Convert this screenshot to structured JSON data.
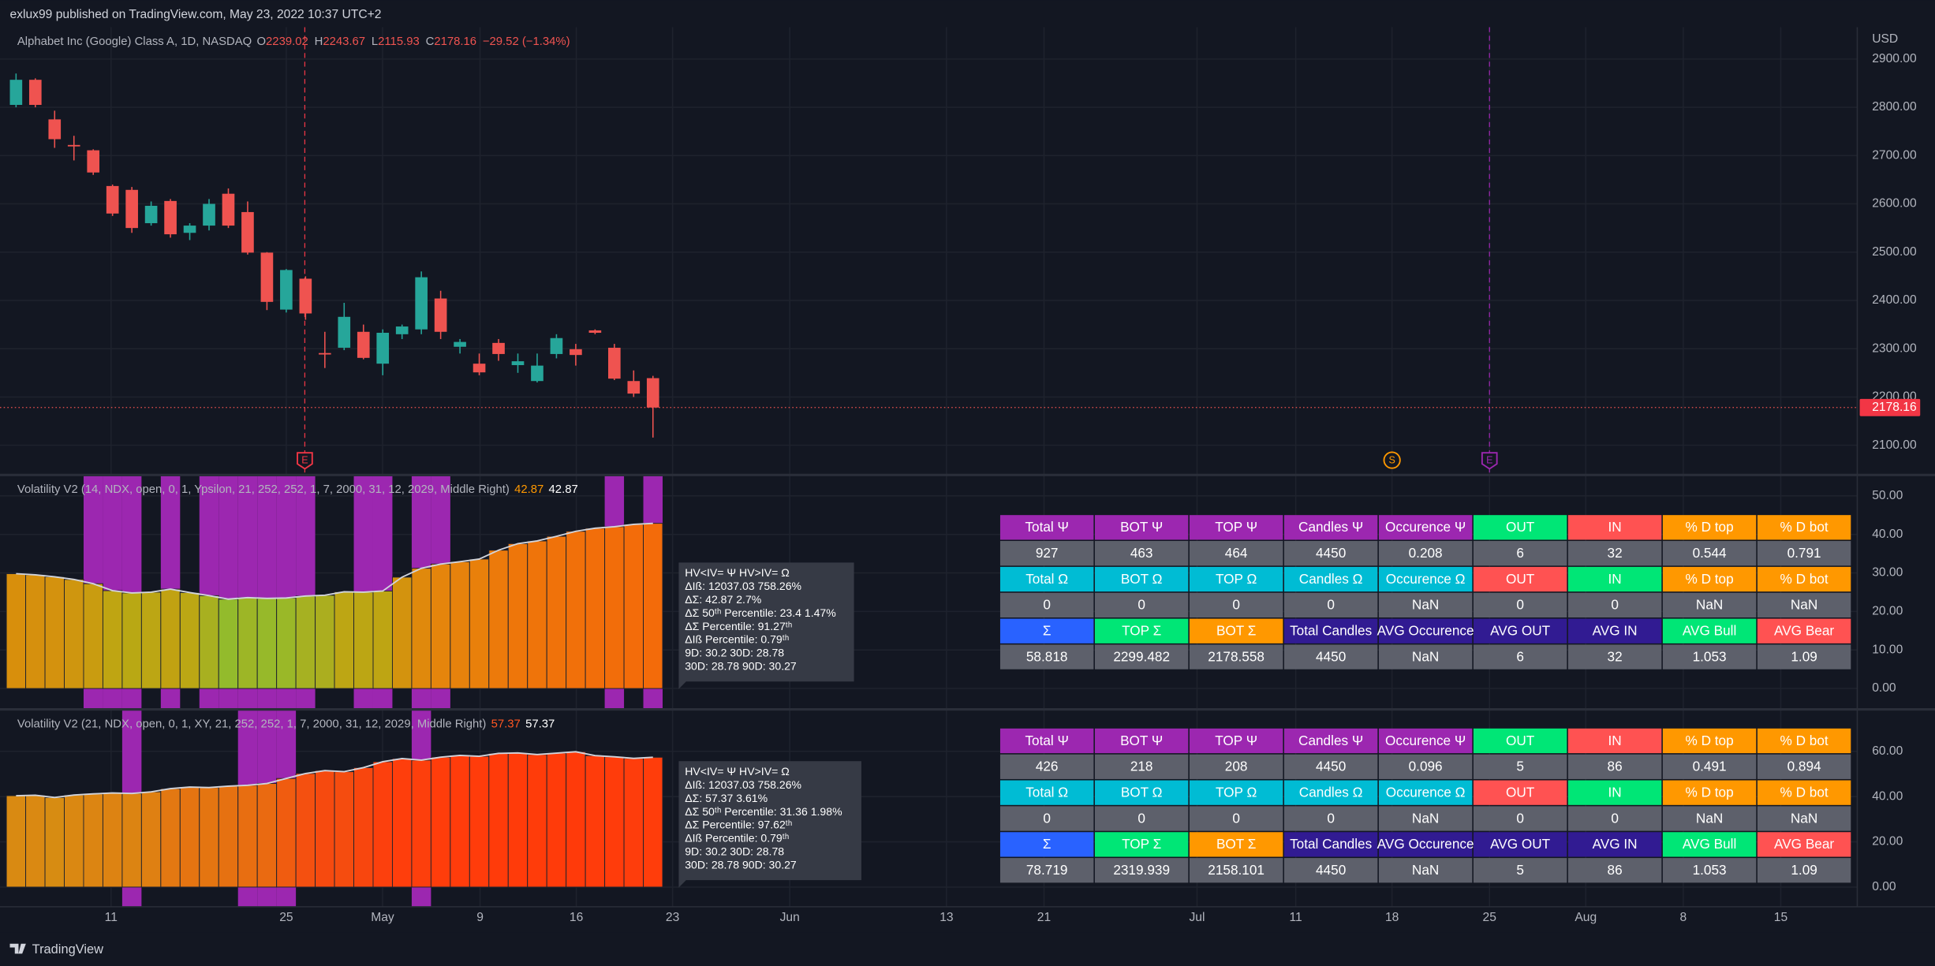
{
  "header": {
    "published": "exlux99 published on TradingView.com, May 23, 2022 10:37 UTC+2",
    "brand": "TradingView"
  },
  "chart_data": [
    {
      "type": "candlestick",
      "title": "Alphabet Inc (Google) Class A, 1D, NASDAQ",
      "legend_letters": [
        "O",
        "H",
        "L",
        "C"
      ],
      "change": "−29.52 (−1.34%)",
      "currency": "USD",
      "open": [
        2805,
        2857,
        2775,
        2722,
        2711,
        2637,
        2629,
        2560,
        2606,
        2540,
        2555,
        2621,
        2583,
        2499,
        2381,
        2445,
        2291,
        2302,
        2335,
        2269,
        2330,
        2340,
        2404,
        2304,
        2269,
        2312,
        2266,
        2233,
        2289,
        2299,
        2338,
        2302,
        2233,
        2239.02
      ],
      "high": [
        2870,
        2860,
        2793,
        2741,
        2713,
        2640,
        2635,
        2605,
        2610,
        2560,
        2610,
        2632,
        2605,
        2500,
        2465,
        2450,
        2335,
        2395,
        2350,
        2340,
        2350,
        2460,
        2420,
        2320,
        2290,
        2320,
        2290,
        2290,
        2330,
        2310,
        2340,
        2310,
        2255,
        2243.67
      ],
      "low": [
        2800,
        2800,
        2716,
        2690,
        2660,
        2575,
        2540,
        2555,
        2530,
        2525,
        2545,
        2550,
        2495,
        2380,
        2375,
        2360,
        2260,
        2297,
        2278,
        2245,
        2320,
        2330,
        2320,
        2290,
        2245,
        2275,
        2250,
        2230,
        2280,
        2265,
        2330,
        2235,
        2200,
        2115.93
      ],
      "close": [
        2857,
        2805,
        2734,
        2719,
        2665,
        2580,
        2550,
        2596,
        2537,
        2555,
        2600,
        2555,
        2499,
        2397,
        2463,
        2373,
        2288,
        2366,
        2281,
        2333,
        2346,
        2448,
        2335,
        2314,
        2251,
        2289,
        2274,
        2265,
        2322,
        2287,
        2333,
        2238,
        2207,
        2178.16
      ],
      "up_color": "#26a69a",
      "down_color": "#ef5350",
      "ylim": [
        2041,
        2966
      ],
      "yticks": [
        {
          "value": 2100,
          "label": "2100.00"
        },
        {
          "value": 2200,
          "label": "2200.00"
        },
        {
          "value": 2300,
          "label": "2300.00"
        },
        {
          "value": 2400,
          "label": "2400.00"
        },
        {
          "value": 2500,
          "label": "2500.00"
        },
        {
          "value": 2600,
          "label": "2600.00"
        },
        {
          "value": 2700,
          "label": "2700.00"
        },
        {
          "value": 2800,
          "label": "2800.00"
        },
        {
          "value": 2900,
          "label": "2900.00"
        }
      ],
      "grid": true,
      "x_labels": [
        "11",
        "25",
        "May",
        "9",
        "16",
        "23",
        "Jun",
        "13",
        "21",
        "Jul",
        "11",
        "18",
        "25",
        "Aug",
        "8",
        "15"
      ],
      "events": [
        {
          "label": "E",
          "color": "#f23645"
        },
        {
          "label": "S",
          "color": "#ff9800"
        },
        {
          "label": "E",
          "color": "#9c27b0"
        }
      ]
    },
    {
      "type": "bar",
      "title": "Volatility V2 (14, NDX, open, 0, 1, Ypsilon, 21, 252, 252, 1, 7, 2000, 31, 12, 2029, Middle Right)",
      "values": [
        29.8,
        29.5,
        29.0,
        28.3,
        27.2,
        25.4,
        24.8,
        25.0,
        25.8,
        24.9,
        24.1,
        23.2,
        23.6,
        23.4,
        23.5,
        24.0,
        24.2,
        25.1,
        25.0,
        25.3,
        28.9,
        31.2,
        32.3,
        32.9,
        33.6,
        35.9,
        37.6,
        38.3,
        39.5,
        40.8,
        41.6,
        42.0,
        42.6,
        42.87
      ],
      "colors": [
        "#d88f0c",
        "#d6900d",
        "#d4920e",
        "#cf960f",
        "#c99c10",
        "#bfa512",
        "#b9a814",
        "#bca614",
        "#c1a212",
        "#bba714",
        "#a8b020",
        "#93bb2c",
        "#9db626",
        "#97b92a",
        "#9ab828",
        "#a6b122",
        "#abae1f",
        "#bda614",
        "#bca614",
        "#bea513",
        "#d3930e",
        "#e0890c",
        "#e5850c",
        "#e7820c",
        "#e9800b",
        "#ec7a0b",
        "#ee760a",
        "#ef740a",
        "#f0720a",
        "#f1700a",
        "#f26e0a",
        "#f26d0a",
        "#f36c0a",
        "#f36b0a"
      ],
      "highlight": [
        false,
        false,
        false,
        false,
        true,
        true,
        true,
        false,
        true,
        false,
        true,
        true,
        true,
        true,
        true,
        true,
        false,
        false,
        true,
        true,
        false,
        true,
        true,
        false,
        false,
        false,
        false,
        false,
        false,
        false,
        false,
        true,
        false,
        true
      ],
      "highlight_color": "#9c27b0",
      "value_color": "#ff9800",
      "ylim": [
        -5.1,
        55.1
      ],
      "yticks": [
        {
          "value": 0,
          "label": "0.00"
        },
        {
          "value": 10,
          "label": "10.00"
        },
        {
          "value": 20,
          "label": "20.00"
        },
        {
          "value": 30,
          "label": "30.00"
        },
        {
          "value": 40,
          "label": "40.00"
        },
        {
          "value": 50,
          "label": "50.00"
        }
      ],
      "notes": [
        "HV<IV= Ψ  HV>IV= Ω",
        "ΔIß: 12037.03  758.26%",
        "ΔΣ: 42.87  2.7%",
        "ΔΣ 50ᵗʰ Percentile: 23.4  1.47%",
        "ΔΣ Percentile: 91.27ᵗʰ",
        "ΔIß Percentile: 0.79ᵗʰ",
        "9D: 30.2  30D: 28.78",
        "30D: 28.78  90D: 30.27"
      ]
    },
    {
      "type": "bar",
      "title": "Volatility V2 (21, NDX, open, 0, 1, XY, 21, 252, 252, 1, 7, 2000, 31, 12, 2029, Middle Right)",
      "values": [
        40.4,
        40.6,
        39.6,
        40.7,
        41.2,
        41.6,
        41.4,
        42.1,
        43.5,
        44.2,
        44.0,
        44.6,
        45.0,
        45.8,
        48.0,
        50.2,
        51.5,
        51.0,
        52.8,
        55.4,
        56.8,
        56.1,
        57.4,
        58.2,
        57.8,
        59.1,
        59.3,
        58.6,
        59.2,
        59.8,
        58.1,
        57.6,
        56.9,
        57.37
      ],
      "colors": [
        "#d98a12",
        "#da8912",
        "#d78c12",
        "#da8812",
        "#dc8512",
        "#dd8312",
        "#dc8412",
        "#df8012",
        "#e37812",
        "#e57411",
        "#e47511",
        "#e67111",
        "#e86e11",
        "#ea6a11",
        "#f05c10",
        "#f45010",
        "#f64a0f",
        "#f54c0f",
        "#f8460e",
        "#fc400d",
        "#fe3e0c",
        "#fd3f0c",
        "#ff3d0b",
        "#ff3c0b",
        "#ff3c0b",
        "#ff3b0a",
        "#ff3b0a",
        "#ff3c0a",
        "#ff3b0a",
        "#ff3a0a",
        "#ff3c0b",
        "#ff3c0b",
        "#fe3d0c",
        "#ff3d0b"
      ],
      "highlight": [
        false,
        false,
        false,
        false,
        false,
        false,
        true,
        false,
        false,
        false,
        false,
        false,
        true,
        true,
        true,
        false,
        false,
        false,
        false,
        false,
        false,
        true,
        false,
        false,
        false,
        false,
        false,
        false,
        false,
        false,
        false,
        false,
        false,
        false
      ],
      "highlight_color": "#9c27b0",
      "value_color": "#ff5722",
      "ylim": [
        -8.7,
        78
      ],
      "yticks": [
        {
          "value": 0,
          "label": "0.00"
        },
        {
          "value": 20,
          "label": "20.00"
        },
        {
          "value": 40,
          "label": "40.00"
        },
        {
          "value": 60,
          "label": "60.00"
        }
      ],
      "notes": [
        "HV<IV= Ψ  HV>IV= Ω",
        "ΔIß: 12037.03  758.26%",
        "ΔΣ: 57.37  3.61%",
        "ΔΣ 50ᵗʰ Percentile: 31.36  1.98%",
        "ΔΣ Percentile: 97.62ᵗʰ",
        "ΔIß Percentile: 0.79ᵗʰ",
        "9D: 30.2  30D: 28.78",
        "30D: 28.78  90D: 30.27"
      ]
    }
  ],
  "tables": [
    {
      "rows": [
        [
          "Total Ψ",
          "BOT Ψ",
          "TOP Ψ",
          "Candles Ψ",
          "Occurence Ψ",
          "OUT",
          "IN",
          "% D top",
          "% D bot"
        ],
        [
          "927",
          "463",
          "464",
          "4450",
          "0.208",
          "6",
          "32",
          "0.544",
          "0.791"
        ],
        [
          "Total Ω",
          "BOT Ω",
          "TOP Ω",
          "Candles Ω",
          "Occurence Ω",
          "OUT",
          "IN",
          "% D top",
          "% D bot"
        ],
        [
          "0",
          "0",
          "0",
          "0",
          "NaN",
          "0",
          "0",
          "NaN",
          "NaN"
        ],
        [
          "Σ",
          "TOP Σ",
          "BOT Σ",
          "Total Candles",
          "AVG Occurence",
          "AVG OUT",
          "AVG IN",
          "AVG Bull",
          "AVG Bear"
        ],
        [
          "58.818",
          "2299.482",
          "2178.558",
          "4450",
          "NaN",
          "6",
          "32",
          "1.053",
          "1.09"
        ]
      ],
      "header_colors": [
        [
          "#9c27b0",
          "#9c27b0",
          "#9c27b0",
          "#9c27b0",
          "#9c27b0",
          "#00e676",
          "#ff5252",
          "#ff9800",
          "#ff9800"
        ],
        [
          "#00bcd4",
          "#00bcd4",
          "#00bcd4",
          "#00bcd4",
          "#00bcd4",
          "#ff5252",
          "#00e676",
          "#ff9800",
          "#ff9800"
        ],
        [
          "#2962ff",
          "#00e676",
          "#ff9800",
          "#311b92",
          "#311b92",
          "#311b92",
          "#311b92",
          "#00e676",
          "#ff5252"
        ]
      ],
      "value_color": "#5d606b"
    },
    {
      "rows": [
        [
          "Total Ψ",
          "BOT Ψ",
          "TOP Ψ",
          "Candles Ψ",
          "Occurence Ψ",
          "OUT",
          "IN",
          "% D top",
          "% D bot"
        ],
        [
          "426",
          "218",
          "208",
          "4450",
          "0.096",
          "5",
          "86",
          "0.491",
          "0.894"
        ],
        [
          "Total Ω",
          "BOT Ω",
          "TOP Ω",
          "Candles Ω",
          "Occurence Ω",
          "OUT",
          "IN",
          "% D top",
          "% D bot"
        ],
        [
          "0",
          "0",
          "0",
          "0",
          "NaN",
          "0",
          "0",
          "NaN",
          "NaN"
        ],
        [
          "Σ",
          "TOP Σ",
          "BOT Σ",
          "Total Candles",
          "AVG Occurence",
          "AVG OUT",
          "AVG IN",
          "AVG Bull",
          "AVG Bear"
        ],
        [
          "78.719",
          "2319.939",
          "2158.101",
          "4450",
          "NaN",
          "5",
          "86",
          "1.053",
          "1.09"
        ]
      ],
      "header_colors": [
        [
          "#9c27b0",
          "#9c27b0",
          "#9c27b0",
          "#9c27b0",
          "#9c27b0",
          "#00e676",
          "#ff5252",
          "#ff9800",
          "#ff9800"
        ],
        [
          "#00bcd4",
          "#00bcd4",
          "#00bcd4",
          "#00bcd4",
          "#00bcd4",
          "#ff5252",
          "#00e676",
          "#ff9800",
          "#ff9800"
        ],
        [
          "#2962ff",
          "#00e676",
          "#ff9800",
          "#311b92",
          "#311b92",
          "#311b92",
          "#311b92",
          "#00e676",
          "#ff5252"
        ]
      ],
      "value_color": "#5d606b"
    }
  ]
}
